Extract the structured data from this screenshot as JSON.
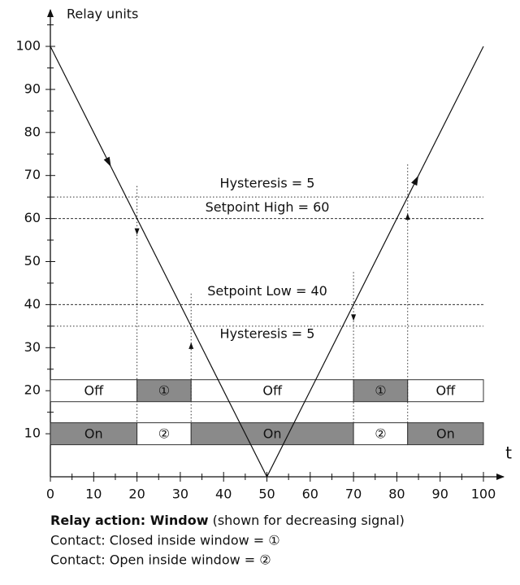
{
  "chart_data": {
    "type": "window-diagram",
    "ylabel": "Relay units",
    "xlabel": "t",
    "xlim": [
      0,
      100
    ],
    "ylim": [
      0,
      100
    ],
    "xticks": [
      0,
      10,
      20,
      30,
      40,
      50,
      60,
      70,
      80,
      90,
      100
    ],
    "yticks": [
      10,
      20,
      30,
      40,
      50,
      60,
      70,
      80,
      90,
      100
    ],
    "signal": {
      "x": [
        0,
        50,
        100
      ],
      "y": [
        100,
        0,
        100
      ]
    },
    "thresholds": [
      {
        "label": "Hysteresis = 5",
        "value": 65,
        "style": "dotted"
      },
      {
        "label": "Setpoint High = 60",
        "value": 60,
        "style": "dashed"
      },
      {
        "label": "Setpoint Low = 40",
        "value": 40,
        "style": "dashed"
      },
      {
        "label": "Hysteresis = 5",
        "value": 35,
        "style": "dotted"
      }
    ],
    "rows": [
      {
        "value": 20,
        "segments": [
          {
            "label": "Off",
            "from": 0,
            "to": 20,
            "color": "#ffffff"
          },
          {
            "label": "①",
            "from": 20,
            "to": 32.5,
            "color": "#8a8a8a"
          },
          {
            "label": "Off",
            "from": 32.5,
            "to": 70,
            "color": "#ffffff"
          },
          {
            "label": "①",
            "from": 70,
            "to": 82.5,
            "color": "#8a8a8a"
          },
          {
            "label": "Off",
            "from": 82.5,
            "to": 100,
            "color": "#ffffff"
          }
        ]
      },
      {
        "value": 10,
        "segments": [
          {
            "label": "On",
            "from": 0,
            "to": 20,
            "color": "#8a8a8a"
          },
          {
            "label": "②",
            "from": 20,
            "to": 32.5,
            "color": "#ffffff"
          },
          {
            "label": "On",
            "from": 32.5,
            "to": 70,
            "color": "#8a8a8a"
          },
          {
            "label": "②",
            "from": 70,
            "to": 82.5,
            "color": "#ffffff"
          },
          {
            "label": "On",
            "from": 82.5,
            "to": 100,
            "color": "#8a8a8a"
          }
        ]
      }
    ],
    "caption": {
      "bold": "Relay action: Window",
      "rest": " (shown for decreasing signal)"
    },
    "notes": [
      "Contact: Closed inside window = ①",
      "Contact: Open inside window = ②"
    ]
  }
}
